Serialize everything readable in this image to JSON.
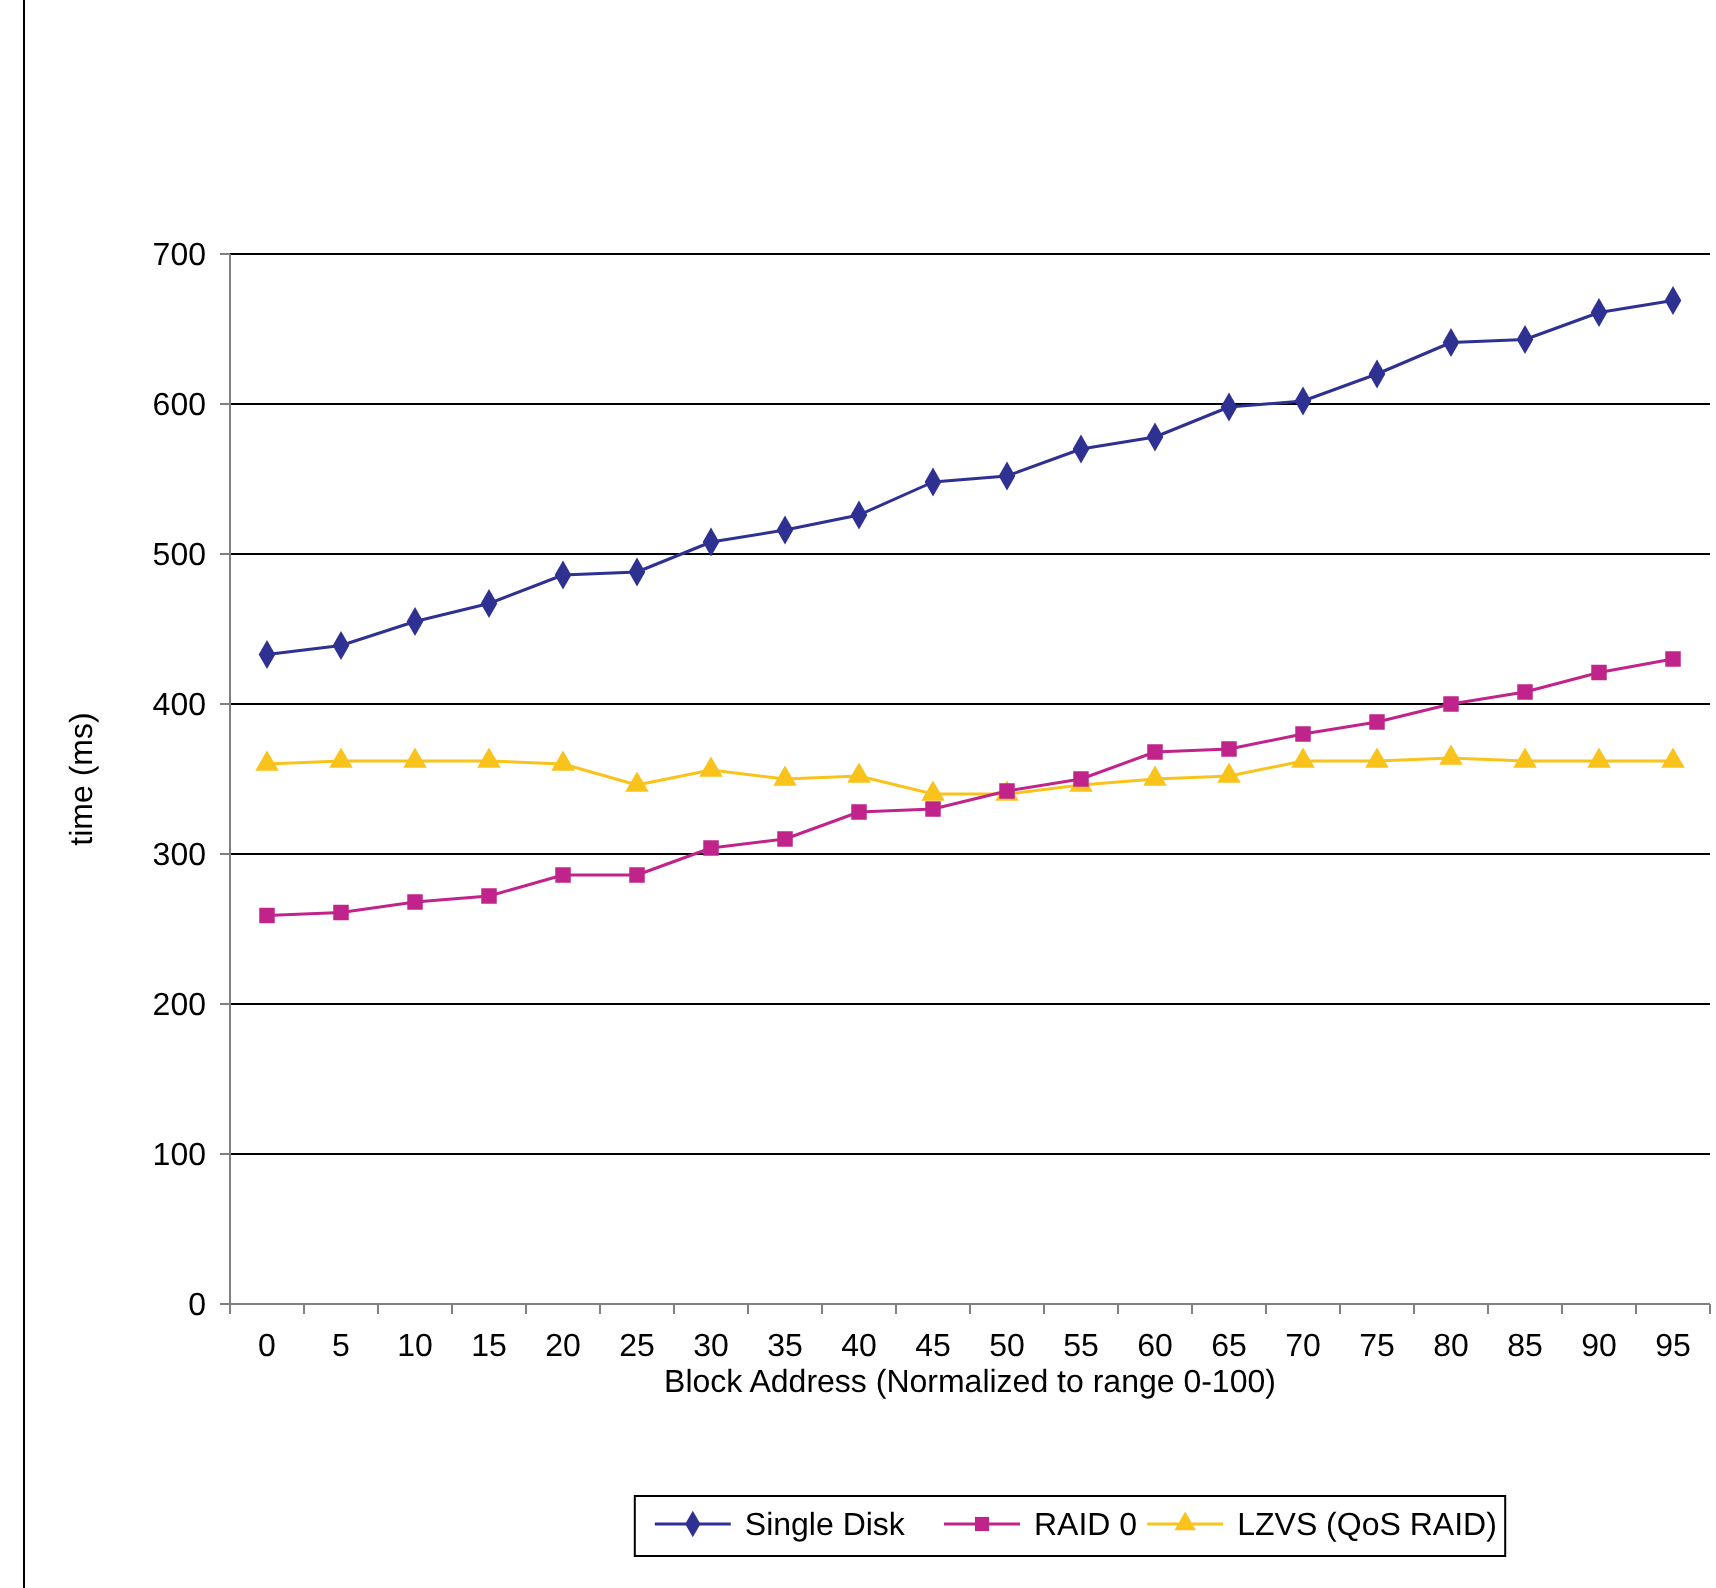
{
  "chart_data": {
    "type": "line",
    "xlabel": "Block Address (Normalized to range 0-100)",
    "ylabel": "time (ms)",
    "categories": [
      "0",
      "5",
      "10",
      "15",
      "20",
      "25",
      "30",
      "35",
      "40",
      "45",
      "50",
      "55",
      "60",
      "65",
      "70",
      "75",
      "80",
      "85",
      "90",
      "95"
    ],
    "series": [
      {
        "name": "Single Disk",
        "color": "#2e3192",
        "marker": "diamond",
        "values": [
          433,
          439,
          455,
          467,
          486,
          488,
          508,
          516,
          526,
          548,
          552,
          570,
          578,
          598,
          602,
          620,
          641,
          643,
          661,
          669
        ]
      },
      {
        "name": "RAID 0",
        "color": "#c0248a",
        "marker": "square",
        "values": [
          259,
          261,
          268,
          272,
          286,
          286,
          304,
          310,
          328,
          330,
          342,
          350,
          368,
          370,
          380,
          388,
          400,
          408,
          421,
          430
        ]
      },
      {
        "name": "LZVS (QoS RAID)",
        "color": "#f9c31c",
        "marker": "triangle",
        "values": [
          360,
          362,
          362,
          362,
          360,
          346,
          356,
          350,
          352,
          340,
          340,
          346,
          350,
          352,
          362,
          362,
          364,
          362,
          362,
          362
        ]
      }
    ],
    "ylim": [
      0,
      700
    ],
    "yticks": [
      0,
      100,
      200,
      300,
      400,
      500,
      600,
      700
    ],
    "grid": "y",
    "legend": "bottom"
  }
}
